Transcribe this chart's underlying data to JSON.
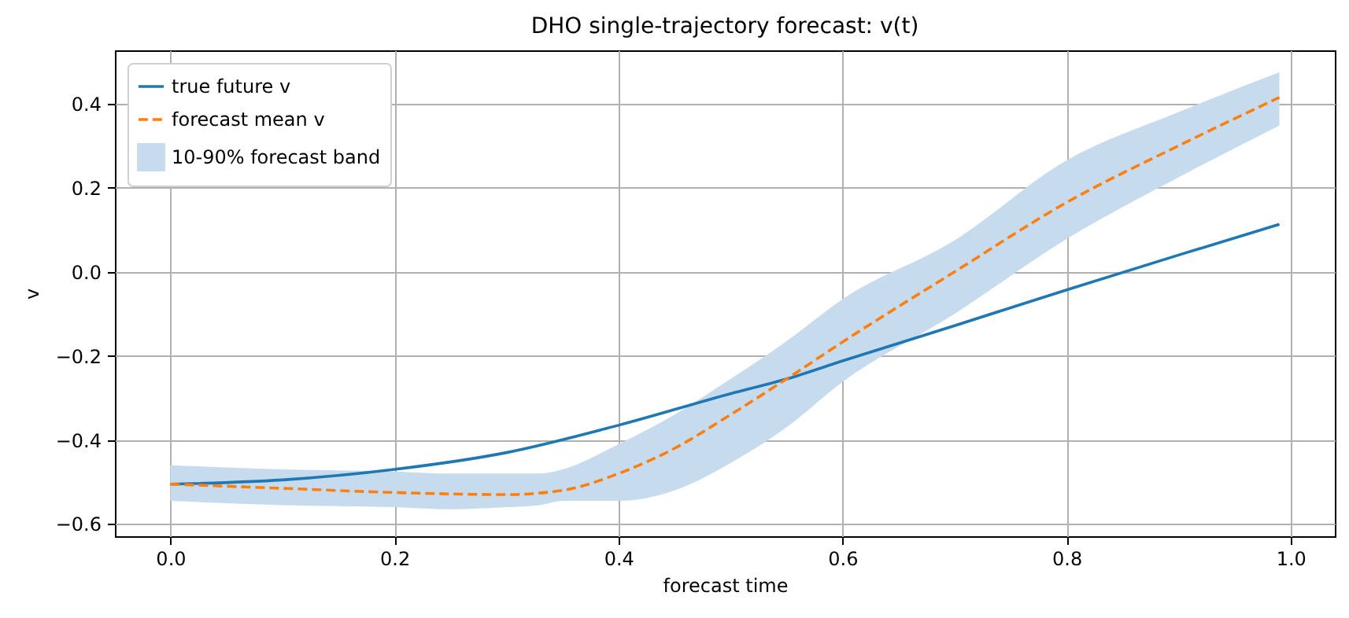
{
  "chart_data": {
    "type": "line",
    "title": "DHO single-trajectory forecast: v(t)",
    "xlabel": "forecast time",
    "ylabel": "v",
    "series": [
      {
        "name": "true future v",
        "color": "#1f77b4",
        "line_style": "solid",
        "x": [
          0,
          0.1,
          0.2,
          0.3,
          0.4,
          0.5,
          0.55,
          0.6,
          0.7,
          0.8,
          0.9,
          0.99
        ],
        "values": [
          -0.505,
          -0.495,
          -0.47,
          -0.43,
          -0.365,
          -0.29,
          -0.255,
          -0.212,
          -0.128,
          -0.043,
          0.04,
          0.113
        ]
      },
      {
        "name": "forecast mean v",
        "color": "#ff7f0e",
        "line_style": "dashed",
        "x": [
          0,
          0.1,
          0.2,
          0.3,
          0.35,
          0.4,
          0.45,
          0.5,
          0.55,
          0.6,
          0.7,
          0.8,
          0.9,
          0.99
        ],
        "values": [
          -0.505,
          -0.515,
          -0.525,
          -0.53,
          -0.52,
          -0.48,
          -0.42,
          -0.34,
          -0.255,
          -0.167,
          0.0,
          0.165,
          0.3,
          0.415
        ]
      },
      {
        "name": "10-90% forecast band",
        "color": "#c6dcee",
        "x": [
          0,
          0.1,
          0.2,
          0.25,
          0.3,
          0.33,
          0.35,
          0.4,
          0.45,
          0.5,
          0.55,
          0.6,
          0.7,
          0.8,
          0.9,
          0.99
        ],
        "values": [
          null,
          null,
          null,
          null,
          null,
          null,
          null,
          null,
          null,
          null,
          null,
          null,
          null,
          null,
          null,
          null
        ],
        "lower": [
          -0.545,
          -0.555,
          -0.56,
          -0.565,
          -0.56,
          -0.555,
          -0.545,
          -0.545,
          -0.52,
          -0.455,
          -0.37,
          -0.262,
          -0.1,
          0.078,
          0.225,
          0.348
        ],
        "upper": [
          -0.46,
          -0.47,
          -0.475,
          -0.48,
          -0.48,
          -0.48,
          -0.47,
          -0.41,
          -0.34,
          -0.255,
          -0.165,
          -0.065,
          0.075,
          0.265,
          0.38,
          0.475
        ]
      }
    ],
    "xlim": [
      -0.0495,
      1.0395
    ],
    "ylim": [
      -0.629,
      0.527
    ],
    "xticks": [
      {
        "value": 0,
        "label": "0.0"
      },
      0.2,
      0.4,
      0.6,
      0.8,
      {
        "value": 1,
        "label": "1.0"
      }
    ],
    "yticks": [
      {
        "value": -0.6,
        "label": "−0.6"
      },
      {
        "value": -0.4,
        "label": "−0.4"
      },
      {
        "value": -0.2,
        "label": "−0.2"
      },
      {
        "value": 0,
        "label": "0.0"
      },
      0.2,
      0.4
    ],
    "grid": true,
    "legend": "top left"
  }
}
